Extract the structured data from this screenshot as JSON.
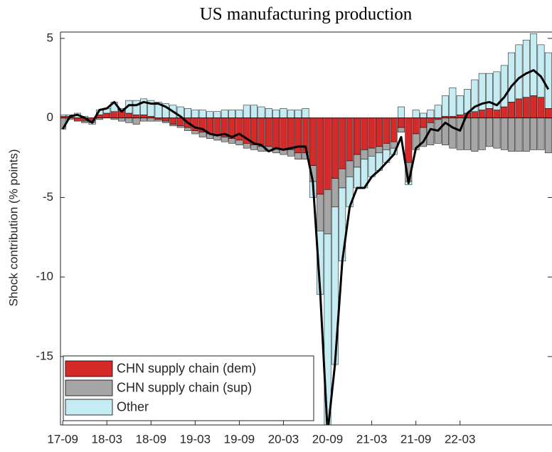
{
  "chart_data": {
    "type": "bar",
    "stacked": true,
    "title": "US manufacturing production",
    "ylabel": "Shock contribution (% points)",
    "categories": [
      "17-09",
      null,
      null,
      null,
      null,
      null,
      "18-03",
      null,
      null,
      null,
      null,
      null,
      "18-09",
      null,
      null,
      null,
      null,
      null,
      "19-03",
      null,
      null,
      null,
      null,
      null,
      "19-09",
      null,
      null,
      null,
      null,
      null,
      "20-03",
      null,
      null,
      null,
      null,
      null,
      "20-09",
      null,
      null,
      null,
      null,
      null,
      "21-03",
      null,
      null,
      null,
      null,
      null,
      "21-09",
      null,
      null,
      null,
      null,
      null,
      "22-03",
      null,
      null,
      null,
      null,
      null,
      null,
      null,
      null,
      null,
      null,
      null,
      null
    ],
    "series": [
      {
        "name": "CHN supply chain (dem)",
        "color": "#d42a2a",
        "values": [
          0.1,
          0.1,
          -0.2,
          -0.2,
          -0.2,
          0.2,
          0.3,
          0.4,
          0.5,
          0.3,
          0.2,
          0.2,
          0.1,
          -0.1,
          -0.2,
          -0.4,
          -0.5,
          -0.6,
          -0.8,
          -0.9,
          -1.0,
          -1.1,
          -1.2,
          -1.3,
          -1.4,
          -1.6,
          -1.7,
          -1.8,
          -1.8,
          -1.9,
          -2.0,
          -2.0,
          -2.2,
          -2.2,
          -3.0,
          -4.8,
          -4.5,
          -3.8,
          -3.2,
          -2.7,
          -2.3,
          -2.0,
          -1.9,
          -1.8,
          -1.6,
          -1.5,
          -0.6,
          -2.8,
          -1.0,
          -0.6,
          -0.3,
          -0.1,
          0.1,
          0.1,
          0.2,
          0.3,
          0.4,
          0.5,
          0.6,
          0.5,
          0.7,
          1.0,
          1.2,
          1.3,
          1.4,
          1.3,
          0.6
        ]
      },
      {
        "name": "CHN supply chain (sup)",
        "color": "#a6a6a6",
        "values": [
          -0.7,
          -0.1,
          0,
          -0.1,
          -0.1,
          -0.1,
          0,
          -0.1,
          -0.2,
          -0.3,
          -0.4,
          -0.2,
          -0.2,
          -0.1,
          -0.1,
          -0.1,
          -0.1,
          -0.2,
          -0.2,
          -0.3,
          -0.3,
          -0.3,
          -0.3,
          -0.3,
          -0.3,
          -0.3,
          -0.3,
          -0.3,
          -0.3,
          -0.3,
          -0.3,
          -0.4,
          -0.4,
          -0.4,
          -1.0,
          -2.3,
          -2.8,
          -1.8,
          -1.2,
          -1.0,
          -0.8,
          -0.6,
          -0.5,
          -0.4,
          -0.4,
          -0.4,
          -0.3,
          -1.2,
          -1.0,
          -1.2,
          -1.4,
          -1.5,
          -1.7,
          -1.9,
          -2.0,
          -2.0,
          -2.1,
          -2.0,
          -1.8,
          -1.9,
          -2.0,
          -2.1,
          -2.1,
          -2.1,
          -2.0,
          -2.0,
          -2.2
        ]
      },
      {
        "name": "Other",
        "color": "#c5ecf2",
        "values": [
          0.1,
          0.1,
          0.3,
          0.1,
          -0.1,
          0.3,
          0.3,
          0.6,
          0.1,
          0.8,
          0.9,
          1.0,
          1.0,
          1.0,
          0.9,
          0.8,
          0.7,
          0.6,
          0.5,
          0.5,
          0.4,
          0.4,
          0.5,
          0.5,
          0.5,
          0.8,
          0.8,
          0.7,
          0.6,
          0.5,
          0.6,
          0.5,
          0.5,
          0.6,
          -1.0,
          -4.0,
          -12.2,
          -9.9,
          -4.6,
          -1.9,
          -1.3,
          -1.8,
          -1.3,
          -1.1,
          -0.8,
          -0.4,
          0.7,
          -0.2,
          0.5,
          0.3,
          0.5,
          0.8,
          1.3,
          1.8,
          1.2,
          1.5,
          2.0,
          2.3,
          2.2,
          2.4,
          2.6,
          3.1,
          3.4,
          3.6,
          3.9,
          3.3,
          3.5
        ]
      }
    ],
    "line": {
      "color": "#000000",
      "values": [
        -0.7,
        0.1,
        0.2,
        0.0,
        -0.3,
        0.5,
        0.6,
        1.0,
        0.4,
        0.8,
        0.8,
        1.0,
        0.9,
        0.9,
        0.7,
        0.4,
        0.1,
        -0.3,
        -0.6,
        -0.7,
        -1.0,
        -1.1,
        -1.0,
        -1.2,
        -1.0,
        -1.3,
        -1.6,
        -1.7,
        -2.1,
        -1.9,
        -2.0,
        -1.9,
        -1.8,
        -1.8,
        -4.0,
        -11,
        -19.8,
        -15.5,
        -9.0,
        -5.6,
        -4.4,
        -4.4,
        -3.7,
        -3.3,
        -2.8,
        -2.3,
        -1.2,
        -4.1,
        -1.9,
        -1.5,
        -0.7,
        -0.8,
        -0.3,
        -0.6,
        -0.8,
        0.3,
        0.7,
        0.9,
        1.0,
        0.8,
        1.3,
        2.0,
        2.5,
        2.8,
        3.0,
        2.6,
        1.8
      ]
    },
    "ylim": [
      -19.3,
      5.4
    ],
    "yticks": [
      -15,
      -10,
      -5,
      0,
      5
    ],
    "grid": false,
    "legend": "lower left"
  }
}
